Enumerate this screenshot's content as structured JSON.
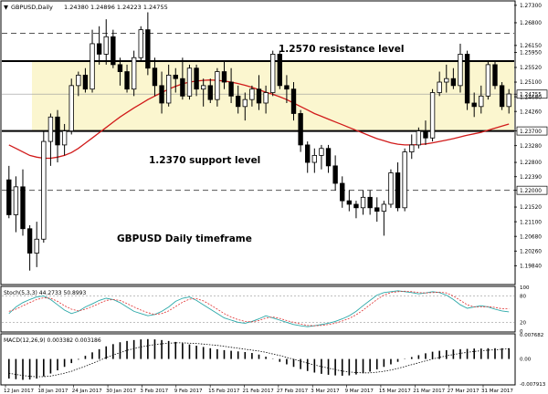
{
  "header": {
    "symbol_label": "GBPUSD,Daily",
    "quote_values": "1.24380 1.24896 1.24223 1.24755"
  },
  "annotations": {
    "resistance": "1.2570 resistance level",
    "support": "1.2370 support level",
    "timeframe": "GBPUSD Daily timeframe"
  },
  "colors": {
    "zone_fill": "#fbf6cf",
    "bull_candle": "#ffffff",
    "bear_candle": "#000000",
    "ma_line": "#d11a1a",
    "stoch_main": "#2aa8a8",
    "stoch_signal": "#e03030",
    "macd_signal": "#000000"
  },
  "chart_data": [
    {
      "type": "candlestick",
      "series": [
        {
          "name": "",
          "kind": "candles"
        },
        {
          "name": "",
          "kind": "moving-average"
        }
      ],
      "ylim": [
        1.193,
        1.274
      ],
      "y_ticks": [
        "1.27300",
        "1.26800",
        "1.26150",
        "1.25950",
        "1.25520",
        "1.25100",
        "1.24755",
        "1.24680",
        "1.24260",
        "1.23700",
        "1.23280",
        "1.22800",
        "1.22390",
        "1.22000",
        "1.21520",
        "1.21100",
        "1.20680",
        "1.20260",
        "1.19840"
      ],
      "x_labels": [
        "12 Jan 2017",
        "18 Jan 2017",
        "24 Jan 2017",
        "30 Jan 2017",
        "3 Feb 2017",
        "9 Feb 2017",
        "15 Feb 2017",
        "21 Feb 2017",
        "27 Feb 2017",
        "3 Mar 2017",
        "9 Mar 2017",
        "15 Mar 2017",
        "21 Mar 2017",
        "27 Mar 2017",
        "31 Mar 2017"
      ],
      "price_lines": {
        "resistance": 1.257,
        "support": 1.237,
        "upper_dashed": 1.265,
        "lower_dashed": 1.22
      },
      "zone": [
        1.237,
        1.257
      ],
      "last_price": 1.24755,
      "candles": [
        {
          "o": 1.223,
          "h": 1.227,
          "l": 1.212,
          "c": 1.213
        },
        {
          "o": 1.213,
          "h": 1.224,
          "l": 1.208,
          "c": 1.221
        },
        {
          "o": 1.221,
          "h": 1.226,
          "l": 1.207,
          "c": 1.209
        },
        {
          "o": 1.209,
          "h": 1.21,
          "l": 1.197,
          "c": 1.202
        },
        {
          "o": 1.202,
          "h": 1.211,
          "l": 1.198,
          "c": 1.206
        },
        {
          "o": 1.206,
          "h": 1.237,
          "l": 1.205,
          "c": 1.234
        },
        {
          "o": 1.234,
          "h": 1.242,
          "l": 1.227,
          "c": 1.241
        },
        {
          "o": 1.241,
          "h": 1.243,
          "l": 1.228,
          "c": 1.233
        },
        {
          "o": 1.233,
          "h": 1.239,
          "l": 1.23,
          "c": 1.237
        },
        {
          "o": 1.237,
          "h": 1.252,
          "l": 1.236,
          "c": 1.25
        },
        {
          "o": 1.25,
          "h": 1.254,
          "l": 1.247,
          "c": 1.253
        },
        {
          "o": 1.253,
          "h": 1.255,
          "l": 1.248,
          "c": 1.249
        },
        {
          "o": 1.249,
          "h": 1.266,
          "l": 1.248,
          "c": 1.262
        },
        {
          "o": 1.262,
          "h": 1.267,
          "l": 1.256,
          "c": 1.259
        },
        {
          "o": 1.259,
          "h": 1.269,
          "l": 1.256,
          "c": 1.264
        },
        {
          "o": 1.264,
          "h": 1.266,
          "l": 1.255,
          "c": 1.256
        },
        {
          "o": 1.256,
          "h": 1.258,
          "l": 1.25,
          "c": 1.254
        },
        {
          "o": 1.254,
          "h": 1.256,
          "l": 1.248,
          "c": 1.249
        },
        {
          "o": 1.249,
          "h": 1.26,
          "l": 1.247,
          "c": 1.258
        },
        {
          "o": 1.258,
          "h": 1.267,
          "l": 1.257,
          "c": 1.266
        },
        {
          "o": 1.266,
          "h": 1.271,
          "l": 1.253,
          "c": 1.255
        },
        {
          "o": 1.255,
          "h": 1.258,
          "l": 1.247,
          "c": 1.25
        },
        {
          "o": 1.25,
          "h": 1.254,
          "l": 1.242,
          "c": 1.245
        },
        {
          "o": 1.245,
          "h": 1.256,
          "l": 1.244,
          "c": 1.253
        },
        {
          "o": 1.253,
          "h": 1.255,
          "l": 1.248,
          "c": 1.252
        },
        {
          "o": 1.252,
          "h": 1.258,
          "l": 1.246,
          "c": 1.247
        },
        {
          "o": 1.247,
          "h": 1.256,
          "l": 1.246,
          "c": 1.255
        },
        {
          "o": 1.255,
          "h": 1.256,
          "l": 1.247,
          "c": 1.249
        },
        {
          "o": 1.249,
          "h": 1.252,
          "l": 1.244,
          "c": 1.25
        },
        {
          "o": 1.25,
          "h": 1.252,
          "l": 1.245,
          "c": 1.246
        },
        {
          "o": 1.246,
          "h": 1.255,
          "l": 1.244,
          "c": 1.254
        },
        {
          "o": 1.254,
          "h": 1.257,
          "l": 1.249,
          "c": 1.251
        },
        {
          "o": 1.251,
          "h": 1.255,
          "l": 1.245,
          "c": 1.247
        },
        {
          "o": 1.247,
          "h": 1.25,
          "l": 1.242,
          "c": 1.244
        },
        {
          "o": 1.244,
          "h": 1.248,
          "l": 1.24,
          "c": 1.246
        },
        {
          "o": 1.246,
          "h": 1.25,
          "l": 1.244,
          "c": 1.249
        },
        {
          "o": 1.249,
          "h": 1.253,
          "l": 1.243,
          "c": 1.245
        },
        {
          "o": 1.245,
          "h": 1.25,
          "l": 1.242,
          "c": 1.248
        },
        {
          "o": 1.248,
          "h": 1.26,
          "l": 1.247,
          "c": 1.259
        },
        {
          "o": 1.259,
          "h": 1.26,
          "l": 1.249,
          "c": 1.25
        },
        {
          "o": 1.25,
          "h": 1.253,
          "l": 1.245,
          "c": 1.249
        },
        {
          "o": 1.249,
          "h": 1.251,
          "l": 1.24,
          "c": 1.242
        },
        {
          "o": 1.242,
          "h": 1.243,
          "l": 1.231,
          "c": 1.233
        },
        {
          "o": 1.233,
          "h": 1.234,
          "l": 1.225,
          "c": 1.228
        },
        {
          "o": 1.228,
          "h": 1.232,
          "l": 1.225,
          "c": 1.23
        },
        {
          "o": 1.23,
          "h": 1.233,
          "l": 1.226,
          "c": 1.232
        },
        {
          "o": 1.232,
          "h": 1.233,
          "l": 1.225,
          "c": 1.227
        },
        {
          "o": 1.227,
          "h": 1.23,
          "l": 1.22,
          "c": 1.222
        },
        {
          "o": 1.222,
          "h": 1.224,
          "l": 1.215,
          "c": 1.217
        },
        {
          "o": 1.217,
          "h": 1.22,
          "l": 1.214,
          "c": 1.216
        },
        {
          "o": 1.216,
          "h": 1.217,
          "l": 1.212,
          "c": 1.215
        },
        {
          "o": 1.215,
          "h": 1.22,
          "l": 1.213,
          "c": 1.218
        },
        {
          "o": 1.218,
          "h": 1.22,
          "l": 1.213,
          "c": 1.215
        },
        {
          "o": 1.215,
          "h": 1.218,
          "l": 1.211,
          "c": 1.214
        },
        {
          "o": 1.214,
          "h": 1.217,
          "l": 1.207,
          "c": 1.216
        },
        {
          "o": 1.216,
          "h": 1.226,
          "l": 1.215,
          "c": 1.225
        },
        {
          "o": 1.225,
          "h": 1.228,
          "l": 1.214,
          "c": 1.215
        },
        {
          "o": 1.215,
          "h": 1.232,
          "l": 1.214,
          "c": 1.231
        },
        {
          "o": 1.231,
          "h": 1.236,
          "l": 1.229,
          "c": 1.233
        },
        {
          "o": 1.233,
          "h": 1.238,
          "l": 1.232,
          "c": 1.237
        },
        {
          "o": 1.237,
          "h": 1.24,
          "l": 1.233,
          "c": 1.235
        },
        {
          "o": 1.235,
          "h": 1.249,
          "l": 1.234,
          "c": 1.248
        },
        {
          "o": 1.248,
          "h": 1.254,
          "l": 1.247,
          "c": 1.251
        },
        {
          "o": 1.251,
          "h": 1.256,
          "l": 1.248,
          "c": 1.252
        },
        {
          "o": 1.252,
          "h": 1.255,
          "l": 1.249,
          "c": 1.25
        },
        {
          "o": 1.25,
          "h": 1.262,
          "l": 1.248,
          "c": 1.259
        },
        {
          "o": 1.259,
          "h": 1.26,
          "l": 1.243,
          "c": 1.245
        },
        {
          "o": 1.245,
          "h": 1.248,
          "l": 1.241,
          "c": 1.244
        },
        {
          "o": 1.244,
          "h": 1.25,
          "l": 1.242,
          "c": 1.247
        },
        {
          "o": 1.247,
          "h": 1.257,
          "l": 1.246,
          "c": 1.256
        },
        {
          "o": 1.256,
          "h": 1.257,
          "l": 1.249,
          "c": 1.25
        },
        {
          "o": 1.25,
          "h": 1.251,
          "l": 1.243,
          "c": 1.244
        },
        {
          "o": 1.244,
          "h": 1.249,
          "l": 1.242,
          "c": 1.2476
        }
      ],
      "ma": [
        1.233,
        1.232,
        1.231,
        1.23,
        1.2295,
        1.2292,
        1.2292,
        1.2295,
        1.23,
        1.2308,
        1.232,
        1.2335,
        1.235,
        1.2365,
        1.238,
        1.2395,
        1.241,
        1.2423,
        1.2436,
        1.2448,
        1.246,
        1.247,
        1.248,
        1.249,
        1.2498,
        1.2505,
        1.251,
        1.2513,
        1.2515,
        1.2516,
        1.2515,
        1.2513,
        1.251,
        1.2506,
        1.2501,
        1.2495,
        1.2488,
        1.2481,
        1.2475,
        1.2468,
        1.246,
        1.245,
        1.244,
        1.243,
        1.242,
        1.2412,
        1.2404,
        1.2396,
        1.2388,
        1.238,
        1.2372,
        1.2364,
        1.2356,
        1.2348,
        1.2342,
        1.2336,
        1.2332,
        1.233,
        1.233,
        1.2331,
        1.2333,
        1.2336,
        1.234,
        1.2344,
        1.2348,
        1.2353,
        1.2358,
        1.2362,
        1.2366,
        1.2372,
        1.2378,
        1.2384,
        1.239
      ]
    },
    {
      "type": "line",
      "title": "Stoch(5,3,3) 44.2733 50.8993",
      "ylim": [
        0,
        100
      ],
      "y_ticks": [
        "100",
        "80",
        "20",
        "0"
      ],
      "levels": [
        80,
        20
      ],
      "series": [
        {
          "name": "",
          "values": [
            40,
            55,
            65,
            72,
            78,
            80,
            72,
            60,
            48,
            40,
            45,
            55,
            62,
            70,
            75,
            72,
            65,
            55,
            45,
            40,
            35,
            38,
            45,
            55,
            68,
            75,
            78,
            70,
            60,
            50,
            40,
            30,
            25,
            20,
            18,
            22,
            28,
            35,
            30,
            25,
            20,
            15,
            12,
            10,
            12,
            15,
            18,
            22,
            28,
            35,
            45,
            58,
            70,
            82,
            88,
            90,
            92,
            90,
            88,
            85,
            87,
            90,
            88,
            82,
            72,
            60,
            52,
            55,
            58,
            55,
            50,
            46,
            44
          ]
        },
        {
          "name": "",
          "values": [
            45,
            50,
            58,
            65,
            72,
            76,
            75,
            68,
            58,
            50,
            46,
            50,
            56,
            63,
            70,
            72,
            70,
            63,
            55,
            48,
            42,
            38,
            40,
            46,
            56,
            66,
            73,
            74,
            69,
            60,
            50,
            40,
            32,
            26,
            22,
            21,
            24,
            30,
            32,
            29,
            24,
            20,
            16,
            13,
            12,
            13,
            15,
            18,
            23,
            29,
            37,
            48,
            60,
            72,
            82,
            88,
            90,
            91,
            90,
            88,
            87,
            88,
            89,
            87,
            80,
            70,
            60,
            55,
            55,
            56,
            54,
            51,
            51
          ]
        }
      ]
    },
    {
      "type": "bar",
      "title": "MACD(12,26,9) 0.003382 0.003186",
      "ylim": [
        -0.00791,
        0.00768
      ],
      "y_ticks": [
        "0.007682",
        "0.00",
        "-0.007913"
      ],
      "series": [
        {
          "name": "",
          "values": [
            -0.0062,
            -0.0064,
            -0.0066,
            -0.0065,
            -0.0062,
            -0.0055,
            -0.0046,
            -0.0036,
            -0.0025,
            -0.0013,
            -0.0002,
            0.001,
            0.0021,
            0.0031,
            0.004,
            0.0047,
            0.0053,
            0.0057,
            0.006,
            0.0062,
            0.0063,
            0.0062,
            0.006,
            0.0057,
            0.0054,
            0.005,
            0.0046,
            0.0042,
            0.0038,
            0.0034,
            0.0031,
            0.0028,
            0.0026,
            0.0024,
            0.0022,
            0.0019,
            0.0014,
            0.0007,
            -0.0001,
            -0.0009,
            -0.0017,
            -0.0025,
            -0.0032,
            -0.0038,
            -0.0043,
            -0.0047,
            -0.005,
            -0.0052,
            -0.0053,
            -0.0052,
            -0.0049,
            -0.0045,
            -0.004,
            -0.0033,
            -0.0025,
            -0.0017,
            -0.0009,
            -0.0001,
            0.0006,
            0.0012,
            0.0018,
            0.0023,
            0.0026,
            0.0028,
            0.003,
            0.0031,
            0.0032,
            0.0033,
            0.0033,
            0.0034,
            0.0034,
            0.0034,
            0.0034
          ]
        },
        {
          "name": "",
          "kind": "signal",
          "values": [
            -0.0045,
            -0.0049,
            -0.0052,
            -0.0055,
            -0.0056,
            -0.0056,
            -0.0054,
            -0.005,
            -0.0045,
            -0.0039,
            -0.0031,
            -0.0023,
            -0.0014,
            -0.0005,
            0.0004,
            0.0012,
            0.002,
            0.0027,
            0.0033,
            0.0038,
            0.0042,
            0.0046,
            0.0048,
            0.005,
            0.0051,
            0.0051,
            0.005,
            0.0049,
            0.0047,
            0.0045,
            0.0043,
            0.004,
            0.0037,
            0.0034,
            0.0031,
            0.0028,
            0.0025,
            0.0021,
            0.0016,
            0.0011,
            0.0005,
            -0.0001,
            -0.0007,
            -0.0013,
            -0.0019,
            -0.0024,
            -0.0029,
            -0.0034,
            -0.0038,
            -0.0041,
            -0.0043,
            -0.0044,
            -0.0044,
            -0.0042,
            -0.0039,
            -0.0035,
            -0.003,
            -0.0024,
            -0.0018,
            -0.0012,
            -0.0006,
            0.0,
            0.0005,
            0.001,
            0.0014,
            0.0018,
            0.0021,
            0.0024,
            0.0026,
            0.0028,
            0.0029,
            0.0031,
            0.0032
          ]
        }
      ]
    }
  ]
}
